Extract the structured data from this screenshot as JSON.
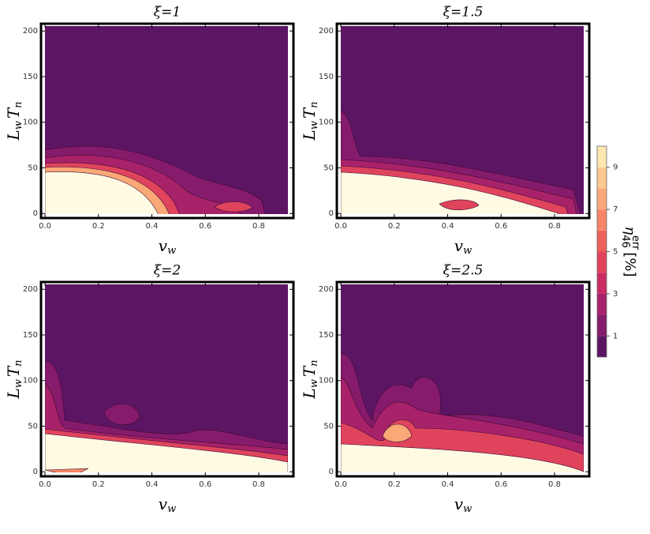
{
  "chart_data": [
    {
      "type": "contour",
      "title": "ξ=1",
      "xlabel": {
        "main": "v",
        "sub": "w"
      },
      "ylabel": {
        "a": "L",
        "a_sub": "w",
        "b": "T",
        "b_sub": "n"
      },
      "xlim": [
        -0.015,
        0.93
      ],
      "ylim": [
        -5,
        208
      ],
      "xticks": [
        {
          "value": 0,
          "label": "0.0"
        },
        0.2,
        0.4,
        0.6,
        0.8
      ],
      "yticks": [
        0,
        50,
        100,
        150,
        200
      ]
    },
    {
      "type": "contour",
      "title": "ξ=1.5",
      "xlabel": {
        "main": "v",
        "sub": "w"
      },
      "ylabel": {
        "a": "L",
        "a_sub": "w",
        "b": "T",
        "b_sub": "n"
      },
      "xlim": [
        -0.015,
        0.93
      ],
      "ylim": [
        -5,
        208
      ],
      "xticks": [
        {
          "value": 0,
          "label": "0.0"
        },
        0.2,
        0.4,
        0.6,
        0.8
      ],
      "yticks": [
        0,
        50,
        100,
        150,
        200
      ]
    },
    {
      "type": "contour",
      "title": "ξ=2",
      "xlabel": {
        "main": "v",
        "sub": "w"
      },
      "ylabel": {
        "a": "L",
        "a_sub": "w",
        "b": "T",
        "b_sub": "n"
      },
      "xlim": [
        -0.015,
        0.93
      ],
      "ylim": [
        -5,
        208
      ],
      "xticks": [
        {
          "value": 0,
          "label": "0.0"
        },
        0.2,
        0.4,
        0.6,
        0.8
      ],
      "yticks": [
        0,
        50,
        100,
        150,
        200
      ]
    },
    {
      "type": "contour",
      "title": "ξ=2.5",
      "xlabel": {
        "main": "v",
        "sub": "w"
      },
      "ylabel": {
        "a": "L",
        "a_sub": "w",
        "b": "T",
        "b_sub": "n"
      },
      "xlim": [
        -0.015,
        0.93
      ],
      "ylim": [
        -5,
        208
      ],
      "xticks": [
        {
          "value": 0,
          "label": "0.0"
        },
        0.2,
        0.4,
        0.6,
        0.8
      ],
      "yticks": [
        0,
        50,
        100,
        150,
        200
      ]
    }
  ],
  "colorbar": {
    "label": {
      "main": "η",
      "sub": "46",
      "sup": "err",
      "unit": "[%]"
    },
    "ylim": [
      0,
      10
    ],
    "ticks": [
      1,
      3,
      5,
      7,
      9
    ],
    "colors": [
      "#5c1563",
      "#861b6b",
      "#a8226a",
      "#c92d64",
      "#e0445d",
      "#ee615b",
      "#f58566",
      "#faa877",
      "#fcc98f",
      "#fde8b2"
    ]
  }
}
